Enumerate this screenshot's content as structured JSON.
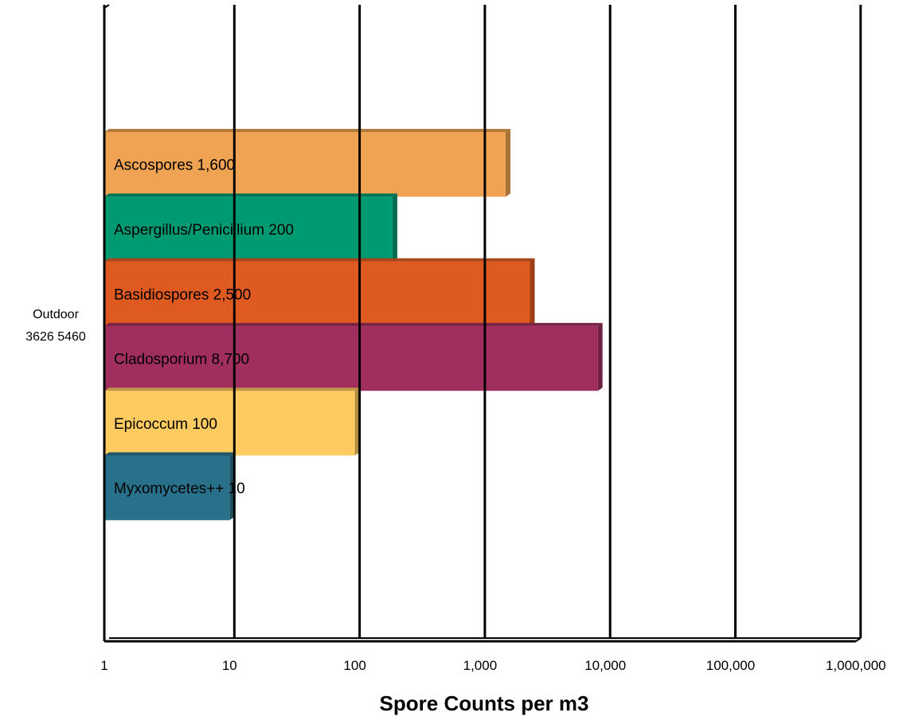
{
  "chart_data": {
    "type": "bar",
    "orientation": "horizontal",
    "x_scale": "log",
    "xlim": [
      1,
      1000000
    ],
    "grid": true,
    "xlabel": "Spore Counts per m3",
    "x_tick_labels": [
      "1",
      "10",
      "100",
      "1,000",
      "10,000",
      "100,000",
      "1,000,000"
    ],
    "category_label_lines": [
      "Outdoor",
      "3626 5460"
    ],
    "series": [
      {
        "name": "Ascospores",
        "label": "Ascospores 1,600",
        "value": 1600,
        "color": "#F0A352"
      },
      {
        "name": "Aspergillus/Penicillium",
        "label": "Aspergillus/Penicillium 200",
        "value": 200,
        "color": "#009A72"
      },
      {
        "name": "Basidiospores",
        "label": "Basidiospores 2,500",
        "value": 2500,
        "color": "#DF5A20"
      },
      {
        "name": "Cladosporium",
        "label": "Cladosporium 8,700",
        "value": 8700,
        "color": "#A02E5F"
      },
      {
        "name": "Epicoccum",
        "label": "Epicoccum 100",
        "value": 100,
        "color": "#FECB60"
      },
      {
        "name": "Myxomycetes++",
        "label": "Myxomycetes++ 10",
        "value": 10,
        "color": "#29718A"
      }
    ]
  }
}
